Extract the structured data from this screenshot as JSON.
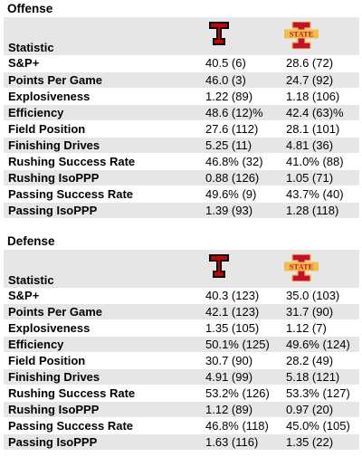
{
  "sections": [
    {
      "title": "Offense",
      "header": {
        "statistic_label": "Statistic"
      },
      "teams": [
        {
          "logo_icon": "texas-tech-logo-icon",
          "color": "#cc0000"
        },
        {
          "logo_icon": "iowa-state-logo-icon",
          "color": "#c8102e"
        }
      ],
      "rows": [
        {
          "stat": "S&P+",
          "a": "40.5 (6)",
          "b": "28.6 (72)"
        },
        {
          "stat": "Points Per Game",
          "a": "46.0 (3)",
          "b": "24.7 (92)"
        },
        {
          "stat": "Explosiveness",
          "a": "1.22 (89)",
          "b": "1.18 (106)"
        },
        {
          "stat": "Efficiency",
          "a": "48.6 (12)%",
          "b": "42.4 (63)%"
        },
        {
          "stat": "Field Position",
          "a": "27.6 (112)",
          "b": "28.1 (101)"
        },
        {
          "stat": "Finishing Drives",
          "a": "5.25 (11)",
          "b": "4.81 (36)"
        },
        {
          "stat": "Rushing Success Rate",
          "a": "46.8% (32)",
          "b": "41.0% (88)"
        },
        {
          "stat": "Rushing IsoPPP",
          "a": "0.88 (126)",
          "b": "1.05 (71)"
        },
        {
          "stat": "Passing Success Rate",
          "a": "49.6% (9)",
          "b": "43.7% (40)"
        },
        {
          "stat": "Passing IsoPPP",
          "a": "1.39 (93)",
          "b": "1.28 (118)"
        }
      ]
    },
    {
      "title": "Defense",
      "header": {
        "statistic_label": "Statistic"
      },
      "teams": [
        {
          "logo_icon": "texas-tech-logo-icon",
          "color": "#cc0000"
        },
        {
          "logo_icon": "iowa-state-logo-icon",
          "color": "#c8102e"
        }
      ],
      "rows": [
        {
          "stat": "S&P+",
          "a": "40.3 (123)",
          "b": "35.0 (103)"
        },
        {
          "stat": "Points Per Game",
          "a": "42.1 (123)",
          "b": "31.7 (90)"
        },
        {
          "stat": "Explosiveness",
          "a": "1.35 (105)",
          "b": "1.12 (7)"
        },
        {
          "stat": "Efficiency",
          "a": "50.1% (125)",
          "b": "49.6% (124)"
        },
        {
          "stat": "Field Position",
          "a": "30.7 (90)",
          "b": "28.2 (49)"
        },
        {
          "stat": "Finishing Drives",
          "a": "4.91 (99)",
          "b": "5.18 (121)"
        },
        {
          "stat": "Rushing Success Rate",
          "a": "53.2% (126)",
          "b": "53.3% (127)"
        },
        {
          "stat": "Rushing IsoPPP",
          "a": "1.12 (89)",
          "b": "0.97 (20)"
        },
        {
          "stat": "Passing Success Rate",
          "a": "46.8% (118)",
          "b": "45.0% (105)"
        },
        {
          "stat": "Passing IsoPPP",
          "a": "1.63 (116)",
          "b": "1.35 (22)"
        }
      ]
    }
  ]
}
